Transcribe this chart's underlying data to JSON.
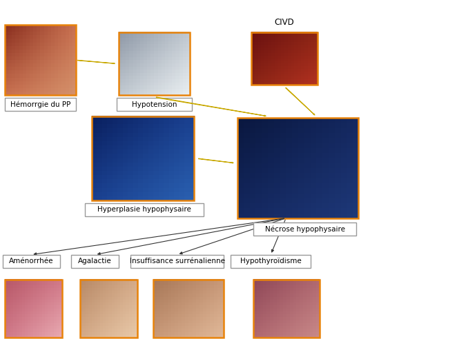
{
  "bg_color": "#ffffff",
  "img_border_color": "#E8830A",
  "label_border_color": "#999999",
  "img_border_lw": 1.8,
  "label_border_lw": 1.0,
  "arrow_color": "#FFE800",
  "arrow_edge": "#C8A800",
  "thin_arrow_color": "#333333",
  "labels": {
    "hemorrhage": "Hémorrgie du PP",
    "hypotension": "Hypotension",
    "civd": "CIVD",
    "hyperplasie": "Hyperplasie hypophysaire",
    "necrose": "Nécrose hypophysaire",
    "amenorrhee": "Aménorrhée",
    "agalactie": "Agalactie",
    "insuffisance": "Insuffisance surrénalienne",
    "hypothyroidisme": "Hypothyroïdisme"
  },
  "label_fontsize": 7.5,
  "civd_label_fontsize": 8.5,
  "boxes": {
    "hemorrhage": [
      0.01,
      0.73,
      0.155,
      0.2
    ],
    "hypotension": [
      0.26,
      0.73,
      0.155,
      0.18
    ],
    "civd": [
      0.55,
      0.76,
      0.145,
      0.15
    ],
    "hyperplasie": [
      0.2,
      0.43,
      0.225,
      0.24
    ],
    "necrose": [
      0.52,
      0.38,
      0.265,
      0.285
    ],
    "amenorrhee_img": [
      0.01,
      0.04,
      0.125,
      0.165
    ],
    "agalactie_img": [
      0.175,
      0.04,
      0.125,
      0.165
    ],
    "insuffisance_img": [
      0.335,
      0.04,
      0.155,
      0.165
    ],
    "hypothyroid_img": [
      0.555,
      0.04,
      0.145,
      0.165
    ]
  },
  "label_boxes": {
    "hemorrhage": [
      0.01,
      0.685,
      0.155,
      0.038
    ],
    "hypotension": [
      0.255,
      0.685,
      0.165,
      0.038
    ],
    "hyperplasie": [
      0.185,
      0.385,
      0.26,
      0.038
    ],
    "necrose": [
      0.555,
      0.33,
      0.225,
      0.038
    ],
    "amenorrhee": [
      0.005,
      0.238,
      0.125,
      0.038
    ],
    "agalactie": [
      0.155,
      0.238,
      0.105,
      0.038
    ],
    "insuffisance": [
      0.285,
      0.238,
      0.205,
      0.038
    ],
    "hypothyroid": [
      0.505,
      0.238,
      0.175,
      0.038
    ]
  },
  "img_colors": {
    "hemorrhage": [
      "#C87050",
      "#8B3020",
      "#D4906A"
    ],
    "hypotension": [
      "#C0C8D0",
      "#909AA8",
      "#E8EDF0"
    ],
    "civd": [
      "#8B2515",
      "#6B1010",
      "#B03020"
    ],
    "hyperplasie": [
      "#1A4090",
      "#0A2060",
      "#2A60B0"
    ],
    "necrose": [
      "#142860",
      "#0A1840",
      "#1E3878"
    ],
    "amenorrhee_img": [
      "#D07888",
      "#B85868",
      "#E8A8B0"
    ],
    "agalactie_img": [
      "#D4AA88",
      "#B88A68",
      "#E8C8A8"
    ],
    "insuffisance_img": [
      "#C89878",
      "#A87858",
      "#E0B898"
    ],
    "hypothyroid_img": [
      "#B06870",
      "#904858",
      "#C88888"
    ]
  }
}
